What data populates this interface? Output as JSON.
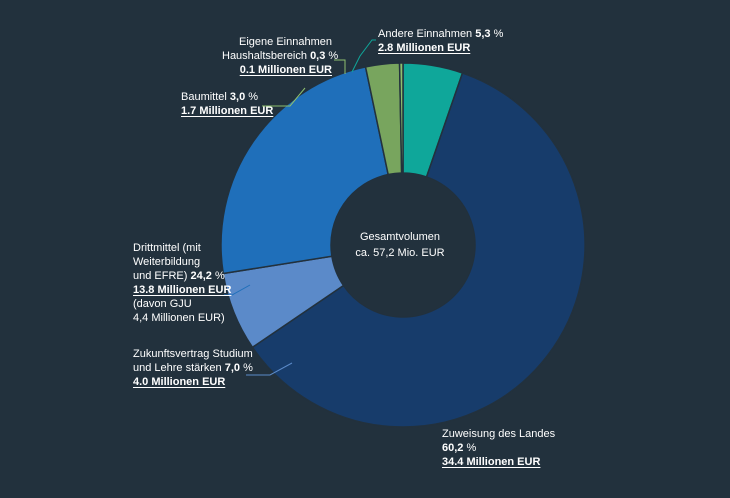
{
  "chart_data": {
    "type": "pie",
    "donut": true,
    "center_label": [
      "Gesamtvolumen",
      "ca. 57,2 Mio. EUR"
    ],
    "slices": [
      {
        "label": "Andere Einnahmen",
        "percent_text": "5,3",
        "percent": 5.3,
        "amount": "2.8 Millionen EUR",
        "color": "#0fa79a"
      },
      {
        "label": "Zuweisung des Landes",
        "percent_text": "60,2",
        "percent": 60.2,
        "amount": "34.4 Millionen EUR",
        "color": "#173c6b"
      },
      {
        "label": "Zukunftsvertrag Studium und Lehre stärken",
        "percent_text": "7,0",
        "percent": 7.0,
        "amount": "4.0 Millionen EUR",
        "color": "#5b8ac9"
      },
      {
        "label": "Drittmittel (mit Weiterbildung und EFRE)",
        "percent_text": "24,2",
        "percent": 24.2,
        "amount": "13.8 Millionen EUR",
        "note": [
          "(davon GJU",
          "4,4 Millionen EUR)"
        ],
        "color": "#1f6fba"
      },
      {
        "label": "Baumittel",
        "percent_text": "3,0",
        "percent": 3.0,
        "amount": "1.7 Millionen EUR",
        "color": "#78a55e"
      },
      {
        "label": "Eigene Einnahmen Haushaltsbereich",
        "percent_text": "0,3",
        "percent": 0.3,
        "amount": "0.1 Millionen EUR",
        "color": "#8ec06e"
      }
    ]
  },
  "labels": {
    "andere": {
      "l1": "Andere Einnahmen",
      "pct": "5,3",
      "unit": "%",
      "amt": "2.8 Millionen EUR"
    },
    "eigene": {
      "l1": "Eigene Einnahmen",
      "l2": "Haushaltsbereich",
      "pct": "0,3",
      "unit": "%",
      "amt": "0.1 Millionen EUR"
    },
    "bau": {
      "l1": "Baumittel",
      "pct": "3,0",
      "unit": "%",
      "amt": "1.7 Millionen EUR"
    },
    "dritt": {
      "l1": "Drittmittel (mit",
      "l2": "Weiterbildung",
      "l3": "und EFRE)",
      "pct": "24,2",
      "unit": "%",
      "amt": "13.8 Millionen EUR",
      "n1": "(davon GJU",
      "n2": "4,4 Millionen EUR)"
    },
    "zukunft": {
      "l1": "Zukunftsvertrag Studium",
      "l2": "und Lehre stärken",
      "pct": "7,0",
      "unit": "%",
      "amt": "4.0 Millionen EUR"
    },
    "land": {
      "l1": "Zuweisung des Landes",
      "pct": "60,2",
      "unit": "%",
      "amt": "34.4 Millionen EUR"
    }
  },
  "colors": {
    "background": "#22313d",
    "hole": "#22313d",
    "leader_teal": "#0fa79a",
    "leader_green": "#8ec06e",
    "leader_blue": "#1f6fba",
    "leader_lightblue": "#5b8ac9"
  }
}
